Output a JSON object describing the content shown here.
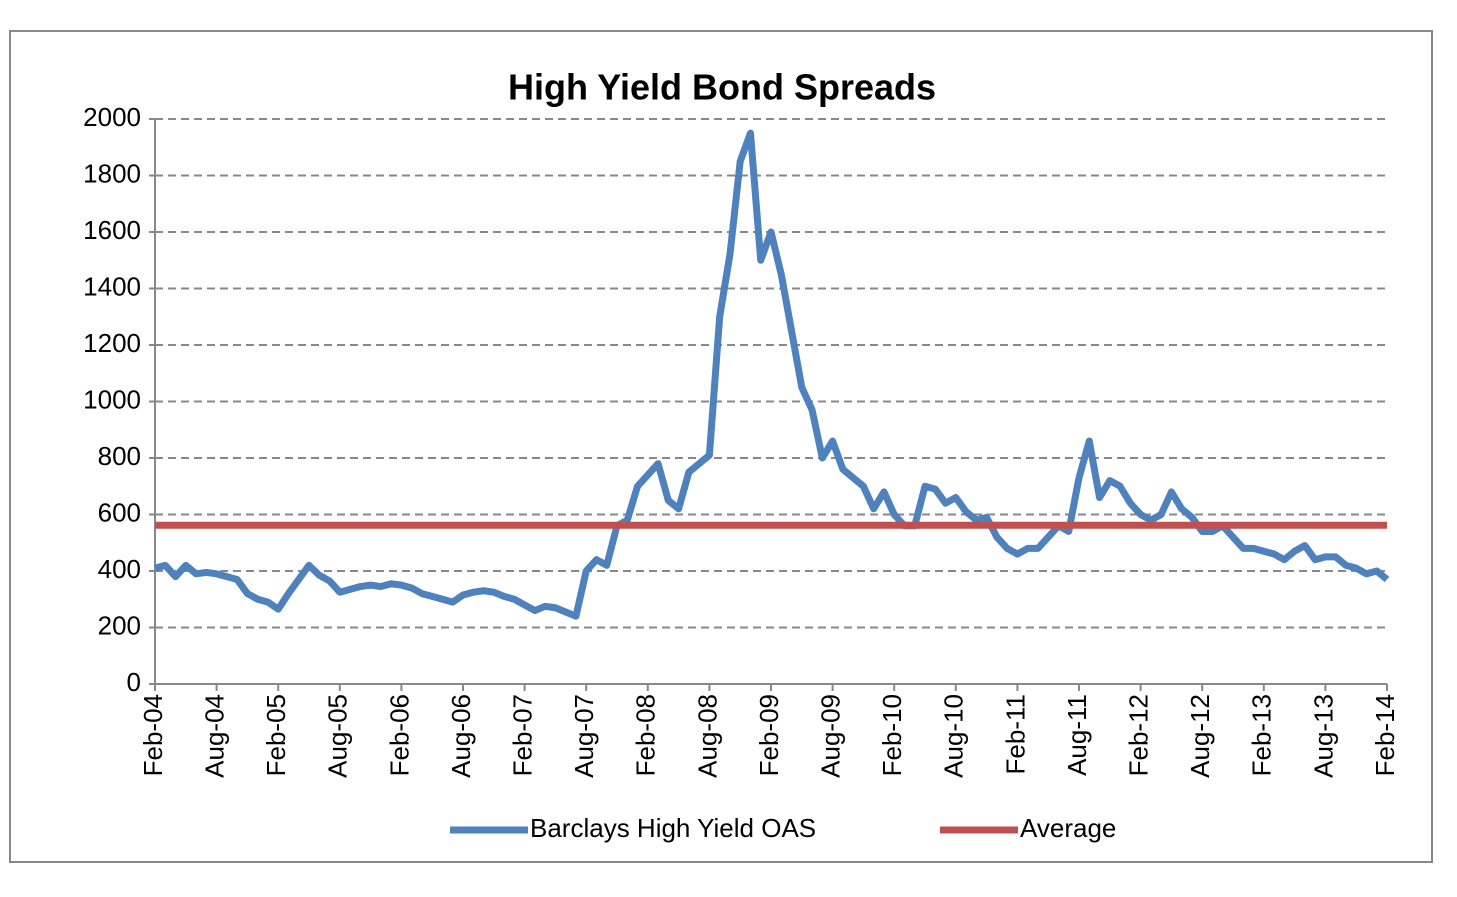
{
  "chart_data": {
    "type": "line",
    "title": "High Yield Bond Spreads",
    "x": [
      "Feb-04",
      "Mar-04",
      "Apr-04",
      "May-04",
      "Jun-04",
      "Jul-04",
      "Aug-04",
      "Sep-04",
      "Oct-04",
      "Nov-04",
      "Dec-04",
      "Jan-05",
      "Feb-05",
      "Mar-05",
      "Apr-05",
      "May-05",
      "Jun-05",
      "Jul-05",
      "Aug-05",
      "Sep-05",
      "Oct-05",
      "Nov-05",
      "Dec-05",
      "Jan-06",
      "Feb-06",
      "Mar-06",
      "Apr-06",
      "May-06",
      "Jun-06",
      "Jul-06",
      "Aug-06",
      "Sep-06",
      "Oct-06",
      "Nov-06",
      "Dec-06",
      "Jan-07",
      "Feb-07",
      "Mar-07",
      "Apr-07",
      "May-07",
      "Jun-07",
      "Jul-07",
      "Aug-07",
      "Sep-07",
      "Oct-07",
      "Nov-07",
      "Dec-07",
      "Jan-08",
      "Feb-08",
      "Mar-08",
      "Apr-08",
      "May-08",
      "Jun-08",
      "Jul-08",
      "Aug-08",
      "Sep-08",
      "Oct-08",
      "Nov-08",
      "Dec-08",
      "Jan-09",
      "Feb-09",
      "Mar-09",
      "Apr-09",
      "May-09",
      "Jun-09",
      "Jul-09",
      "Aug-09",
      "Sep-09",
      "Oct-09",
      "Nov-09",
      "Dec-09",
      "Jan-10",
      "Feb-10",
      "Mar-10",
      "Apr-10",
      "May-10",
      "Jun-10",
      "Jul-10",
      "Aug-10",
      "Sep-10",
      "Oct-10",
      "Nov-10",
      "Dec-10",
      "Jan-11",
      "Feb-11",
      "Mar-11",
      "Apr-11",
      "May-11",
      "Jun-11",
      "Jul-11",
      "Aug-11",
      "Sep-11",
      "Oct-11",
      "Nov-11",
      "Dec-11",
      "Jan-12",
      "Feb-12",
      "Mar-12",
      "Apr-12",
      "May-12",
      "Jun-12",
      "Jul-12",
      "Aug-12",
      "Sep-12",
      "Oct-12",
      "Nov-12",
      "Dec-12",
      "Jan-13",
      "Feb-13",
      "Mar-13",
      "Apr-13",
      "May-13",
      "Jun-13",
      "Jul-13",
      "Aug-13",
      "Sep-13",
      "Oct-13",
      "Nov-13",
      "Dec-13",
      "Jan-14",
      "Feb-14"
    ],
    "xticks": [
      "Feb-04",
      "Aug-04",
      "Feb-05",
      "Aug-05",
      "Feb-06",
      "Aug-06",
      "Feb-07",
      "Aug-07",
      "Feb-08",
      "Aug-08",
      "Feb-09",
      "Aug-09",
      "Feb-10",
      "Aug-10",
      "Feb-11",
      "Aug-11",
      "Feb-12",
      "Aug-12",
      "Feb-13",
      "Aug-13",
      "Feb-14"
    ],
    "series": [
      {
        "name": "Barclays High Yield OAS",
        "color": "#4f81bd",
        "values": [
          410,
          420,
          380,
          420,
          390,
          395,
          390,
          380,
          370,
          320,
          300,
          290,
          265,
          320,
          370,
          420,
          385,
          365,
          325,
          335,
          345,
          350,
          345,
          355,
          350,
          340,
          320,
          310,
          300,
          290,
          315,
          325,
          330,
          325,
          310,
          300,
          280,
          260,
          275,
          270,
          255,
          240,
          400,
          440,
          420,
          560,
          580,
          700,
          740,
          780,
          650,
          620,
          750,
          780,
          810,
          1300,
          1520,
          1850,
          1950,
          1500,
          1600,
          1450,
          1250,
          1050,
          970,
          800,
          860,
          760,
          730,
          700,
          620,
          680,
          600,
          560,
          560,
          700,
          690,
          640,
          660,
          610,
          580,
          590,
          520,
          480,
          460,
          480,
          480,
          520,
          560,
          540,
          730,
          860,
          660,
          720,
          700,
          640,
          600,
          580,
          600,
          680,
          620,
          590,
          540,
          540,
          560,
          520,
          480,
          480,
          470,
          460,
          440,
          470,
          490,
          440,
          450,
          450,
          420,
          410,
          390,
          400,
          370
        ]
      },
      {
        "name": "Average",
        "color": "#c0504d",
        "value": 562
      }
    ],
    "ylim": [
      0,
      2000
    ],
    "yticks": [
      0,
      200,
      400,
      600,
      800,
      1000,
      1200,
      1400,
      1600,
      1800,
      2000
    ],
    "grid": true,
    "legend": "bottom"
  }
}
